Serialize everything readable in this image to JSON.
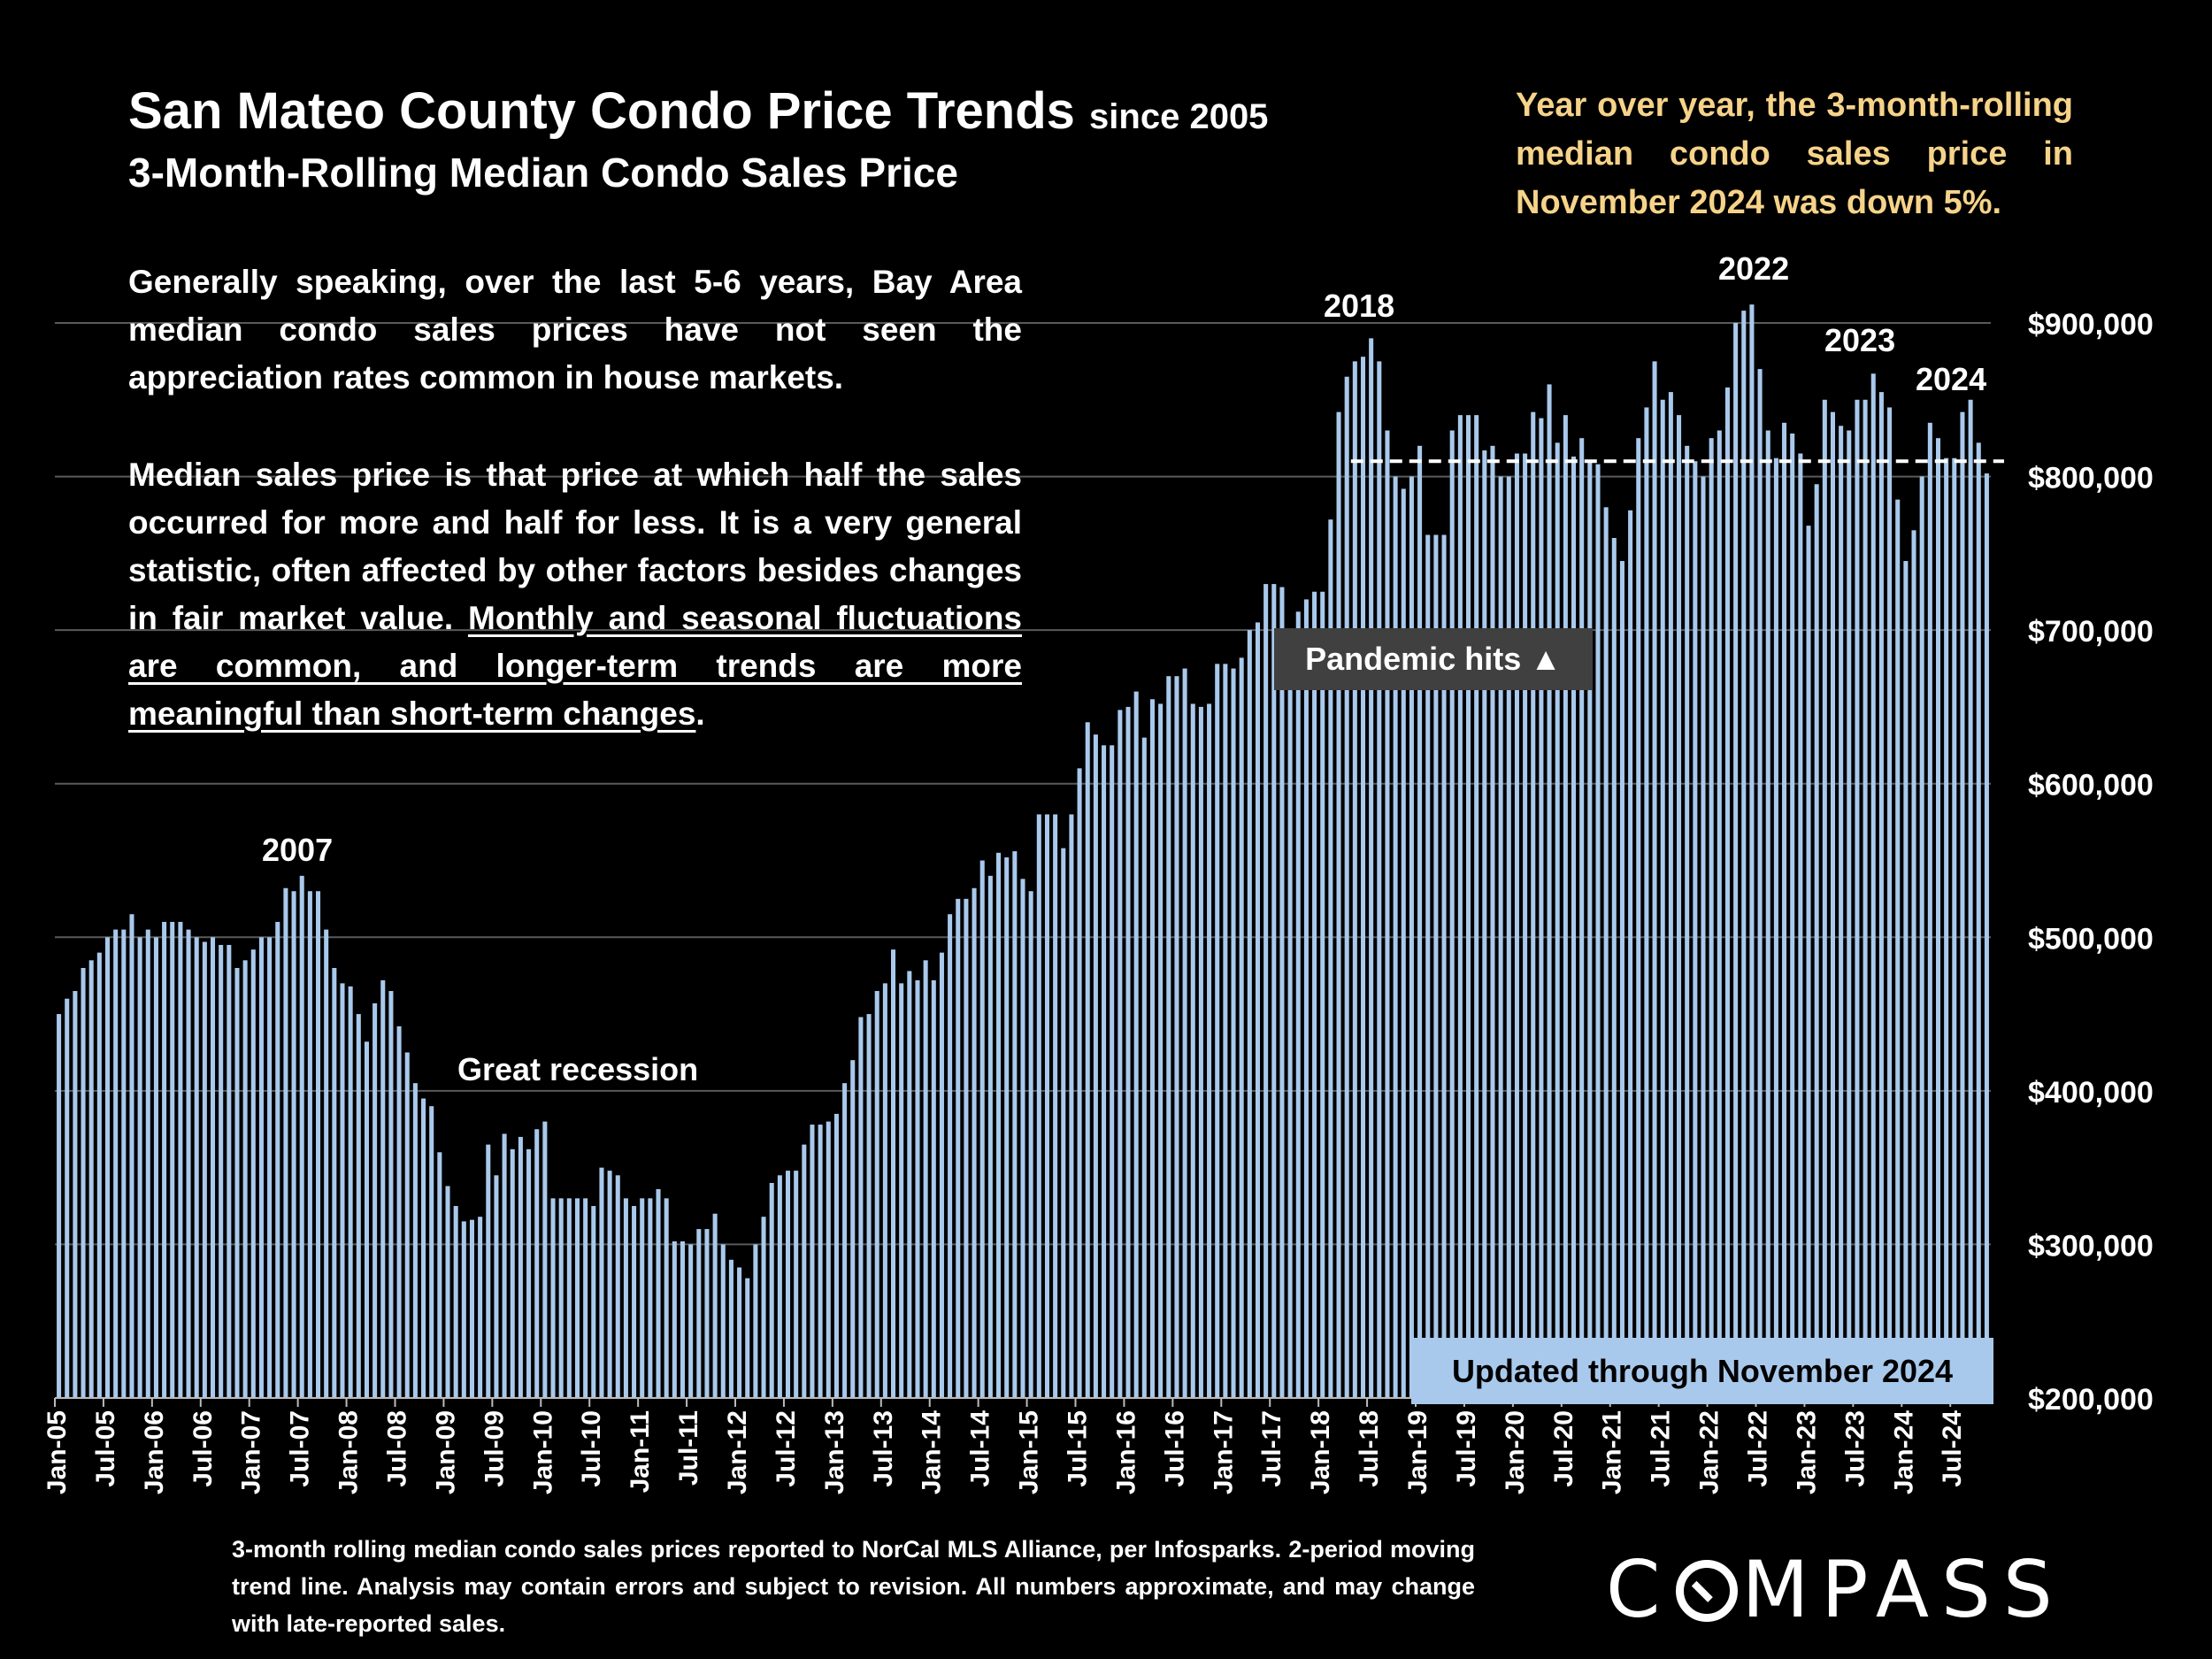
{
  "header": {
    "title": "San Mateo County Condo Price Trends",
    "title_suffix": "since 2005",
    "subtitle": "3-Month-Rolling Median Condo Sales Price"
  },
  "callout": "Year over year, the 3-month-rolling median condo sales price in November 2024 was down 5%.",
  "description": {
    "p1": "Generally speaking, over the last 5-6 years, Bay Area median condo sales prices have not seen the appreciation rates common in house markets.",
    "p2_plain": "Median sales price is that price at which half the sales occurred for more and half for less. It is a very general statistic, often affected by other factors besides changes in fair market value.",
    "p2_underlined": "Monthly and seasonal fluctuations are common, and longer-term trends are more meaningful than short-term changes",
    "p2_end": "."
  },
  "annotations": {
    "y2007": "2007",
    "recession": "Great recession",
    "y2018": "2018",
    "y2022": "2022",
    "y2023": "2023",
    "y2024": "2024",
    "pandemic": "Pandemic hits ▲",
    "updated": "Updated through November 2024"
  },
  "footnote": "3-month rolling median condo sales prices reported to NorCal MLS Alliance, per Infosparks. 2-period moving trend line. Analysis may contain errors and subject to revision. All numbers approximate, and may change with late-reported sales.",
  "logo": "COMPASS",
  "colors": {
    "bar": "#a9c9ec",
    "callout": "#f6d389",
    "background": "#000000"
  },
  "chart_data": {
    "type": "bar",
    "title": "San Mateo County Condo Price Trends since 2005",
    "subtitle": "3-Month-Rolling Median Condo Sales Price",
    "start": "2005-01",
    "end": "2024-11",
    "ylim": [
      200000,
      900000
    ],
    "y_ticks": [
      {
        "value": 200000,
        "label": "$200,000"
      },
      {
        "value": 300000,
        "label": "$300,000"
      },
      {
        "value": 400000,
        "label": "$400,000"
      },
      {
        "value": 500000,
        "label": "$500,000"
      },
      {
        "value": 600000,
        "label": "$600,000"
      },
      {
        "value": 700000,
        "label": "$700,000"
      },
      {
        "value": 800000,
        "label": "$800,000"
      },
      {
        "value": 900000,
        "label": "$900,000"
      }
    ],
    "x_tick_labels": [
      "Jan-05",
      "Jul-05",
      "Jan-06",
      "Jul-06",
      "Jan-07",
      "Jul-07",
      "Jan-08",
      "Jul-08",
      "Jan-09",
      "Jul-09",
      "Jan-10",
      "Jul-10",
      "Jan-11",
      "Jul-11",
      "Jan-12",
      "Jul-12",
      "Jan-13",
      "Jul-13",
      "Jan-14",
      "Jul-14",
      "Jan-15",
      "Jul-15",
      "Jan-16",
      "Jul-16",
      "Jan-17",
      "Jul-17",
      "Jan-18",
      "Jul-18",
      "Jan-19",
      "Jul-19",
      "Jan-20",
      "Jul-20",
      "Jan-21",
      "Jul-21",
      "Jan-22",
      "Jul-22",
      "Jan-23",
      "Jul-23",
      "Jan-24",
      "Jul-24"
    ],
    "reference_line": {
      "value": 810000,
      "from": "2018-05",
      "to": "2024-11",
      "style": "dashed"
    },
    "grid": true,
    "values": [
      450000,
      460000,
      465000,
      480000,
      485000,
      490000,
      500000,
      505000,
      505000,
      515000,
      500000,
      505000,
      500000,
      510000,
      510000,
      510000,
      505000,
      500000,
      497000,
      500000,
      495000,
      495000,
      480000,
      485000,
      492000,
      500000,
      500000,
      510000,
      532000,
      530000,
      540000,
      530000,
      530000,
      505000,
      480000,
      470000,
      468000,
      450000,
      432000,
      457000,
      472000,
      465000,
      442000,
      425000,
      405000,
      395000,
      390000,
      360000,
      338000,
      325000,
      315000,
      316000,
      318000,
      365000,
      345000,
      372000,
      362000,
      370000,
      362000,
      375000,
      380000,
      330000,
      330000,
      330000,
      330000,
      330000,
      325000,
      350000,
      348000,
      345000,
      330000,
      325000,
      330000,
      330000,
      336000,
      330000,
      302000,
      302000,
      300000,
      310000,
      310000,
      320000,
      300000,
      290000,
      285000,
      278000,
      300000,
      318000,
      340000,
      345000,
      348000,
      348000,
      365000,
      378000,
      378000,
      380000,
      385000,
      405000,
      420000,
      448000,
      450000,
      465000,
      470000,
      492000,
      470000,
      478000,
      472000,
      485000,
      472000,
      490000,
      515000,
      525000,
      525000,
      532000,
      550000,
      540000,
      555000,
      552000,
      556000,
      538000,
      530000,
      580000,
      580000,
      580000,
      558000,
      580000,
      610000,
      640000,
      632000,
      625000,
      625000,
      648000,
      650000,
      660000,
      630000,
      655000,
      652000,
      670000,
      670000,
      675000,
      652000,
      650000,
      652000,
      678000,
      678000,
      675000,
      682000,
      700000,
      705000,
      730000,
      730000,
      728000,
      700000,
      712000,
      720000,
      725000,
      725000,
      772000,
      842000,
      865000,
      875000,
      878000,
      890000,
      875000,
      830000,
      800000,
      792000,
      800000,
      820000,
      762000,
      762000,
      762000,
      830000,
      840000,
      840000,
      840000,
      817000,
      820000,
      800000,
      800000,
      815000,
      815000,
      842000,
      838000,
      860000,
      822000,
      840000,
      813000,
      825000,
      810000,
      808000,
      780000,
      760000,
      745000,
      778000,
      825000,
      845000,
      875000,
      850000,
      855000,
      840000,
      820000,
      810000,
      800000,
      825000,
      830000,
      858000,
      900000,
      908000,
      912000,
      870000,
      830000,
      812000,
      835000,
      828000,
      815000,
      768000,
      795000,
      850000,
      842000,
      833000,
      830000,
      850000,
      850000,
      867000,
      855000,
      845000,
      785000,
      745000,
      765000,
      800000,
      835000,
      825000,
      812000,
      812000,
      842000,
      850000,
      822000,
      802000
    ]
  }
}
